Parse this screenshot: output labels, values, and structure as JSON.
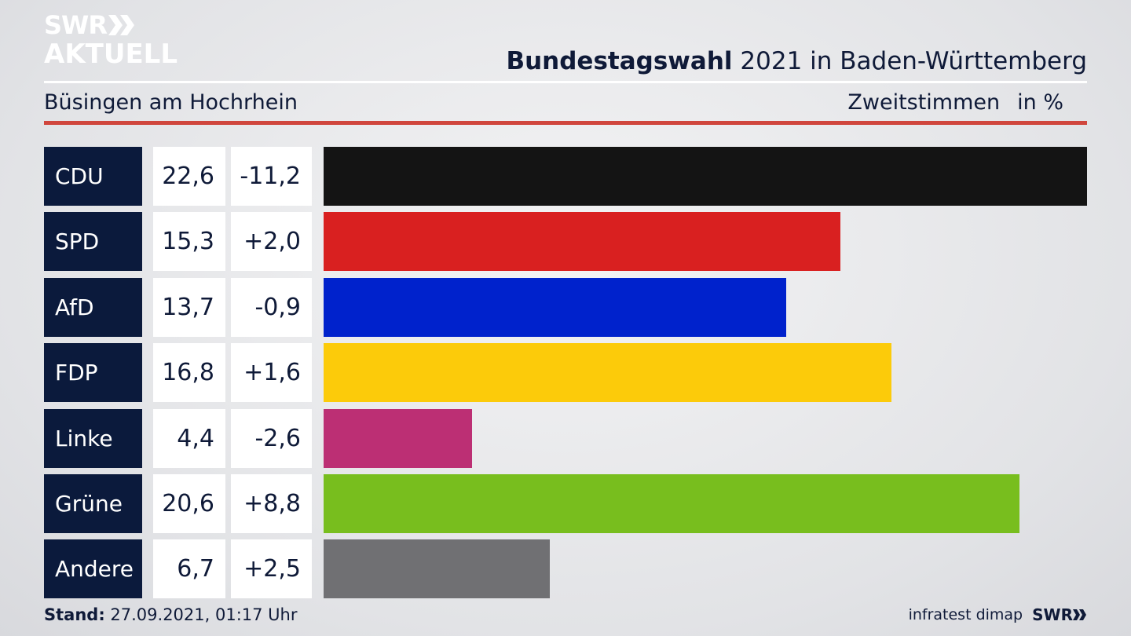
{
  "brand": {
    "line1": "SWR",
    "line2": "AKTUELL"
  },
  "headline": {
    "bold": "Bundestagswahl",
    "rest": " 2021 in Baden-Württemberg"
  },
  "subtitle": "Büsingen am Hochrhein",
  "measure": "Zweitstimmen",
  "unit": "in %",
  "chart_data": {
    "type": "bar",
    "orientation": "horizontal",
    "title": "Bundestagswahl 2021 in Baden-Württemberg",
    "subtitle": "Büsingen am Hochrhein",
    "categories": [
      "CDU",
      "SPD",
      "AfD",
      "FDP",
      "Linke",
      "Grüne",
      "Andere"
    ],
    "values": [
      22.6,
      15.3,
      13.7,
      16.8,
      4.4,
      20.6,
      6.7
    ],
    "value_labels": [
      "22,6",
      "15,3",
      "13,7",
      "16,8",
      "4,4",
      "20,6",
      "6,7"
    ],
    "change_labels": [
      "-11,2",
      "+2,0",
      "-0,9",
      "+1,6",
      "-2,6",
      "+8,8",
      "+2,5"
    ],
    "colors": [
      "#141414",
      "#d92020",
      "#0022cc",
      "#fccb0a",
      "#bc2f74",
      "#78be1e",
      "#707073"
    ],
    "xlim": [
      0,
      22.6
    ],
    "grid": false,
    "legend": "none"
  },
  "footer": {
    "stand_label": "Stand:",
    "stand_value": " 27.09.2021, 01:17 Uhr",
    "source": "infratest dimap",
    "logo": "SWR"
  }
}
